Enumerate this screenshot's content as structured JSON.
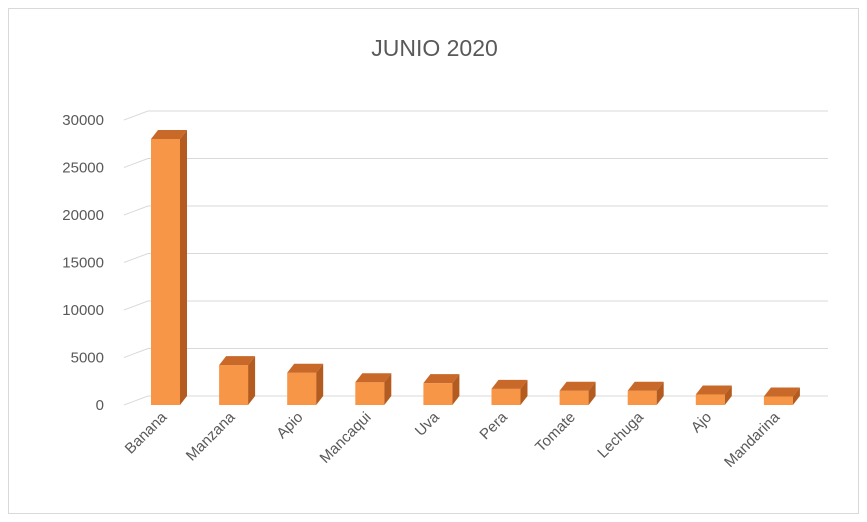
{
  "chart_data": {
    "type": "bar",
    "title": "JUNIO 2020",
    "categories": [
      "Banana",
      "Manzana",
      "Apio",
      "Mancaqui",
      "Uva",
      "Pera",
      "Tomate",
      "Lechuga",
      "Ajo",
      "Mandarina"
    ],
    "values": [
      28000,
      4200,
      3400,
      2400,
      2300,
      1700,
      1500,
      1500,
      1100,
      900
    ],
    "ylim": [
      0,
      30000
    ],
    "yticks": [
      0,
      5000,
      10000,
      15000,
      20000,
      25000,
      30000
    ],
    "grid": true,
    "legend": "none",
    "colors": {
      "bar_front": "#f79646",
      "bar_top": "#c8692a",
      "bar_side": "#b45c20",
      "gridline": "#d9d9d9"
    }
  }
}
